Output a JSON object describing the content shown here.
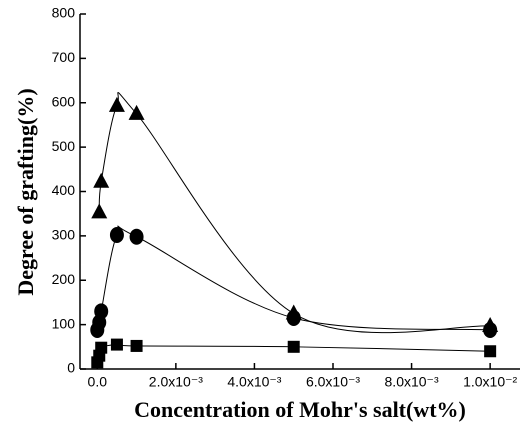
{
  "chart_data": {
    "type": "scatter",
    "y_label": "Degree of grafting(%)",
    "x_label": "Concentration of Mohr's salt(wt%)",
    "series": [
      {
        "marker": "square",
        "color": "#000000",
        "x": [
          0,
          5e-05,
          0.0001,
          0.0005,
          0.001,
          0.005,
          0.01
        ],
        "values": [
          15,
          30,
          48,
          55,
          52,
          50,
          40
        ]
      },
      {
        "marker": "circle",
        "color": "#000000",
        "x": [
          0,
          5e-05,
          0.0001,
          0.0005,
          0.001,
          0.005,
          0.01
        ],
        "values": [
          88,
          105,
          130,
          302,
          298,
          115,
          88
        ]
      },
      {
        "marker": "triangle",
        "color": "#000000",
        "x": [
          5e-05,
          0.0001,
          0.0005,
          0.001,
          0.005,
          0.01
        ],
        "values": [
          353,
          422,
          593,
          575,
          125,
          97
        ]
      }
    ],
    "xlim": [
      -0.00044,
      0.01076
    ],
    "xticks": [
      {
        "value": 0,
        "label": "0.0"
      },
      {
        "value": 0.002,
        "label": "2.0x10⁻³"
      },
      {
        "value": 0.004,
        "label": "4.0x10⁻³"
      },
      {
        "value": 0.006,
        "label": "6.0x10⁻³"
      },
      {
        "value": 0.008,
        "label": "8.0x10⁻³"
      },
      {
        "value": 0.01,
        "label": "1.0x10⁻²"
      }
    ],
    "ylim": [
      0,
      800
    ],
    "yticks": [
      0,
      100,
      200,
      300,
      400,
      500,
      600,
      700,
      800
    ],
    "grid": false
  }
}
